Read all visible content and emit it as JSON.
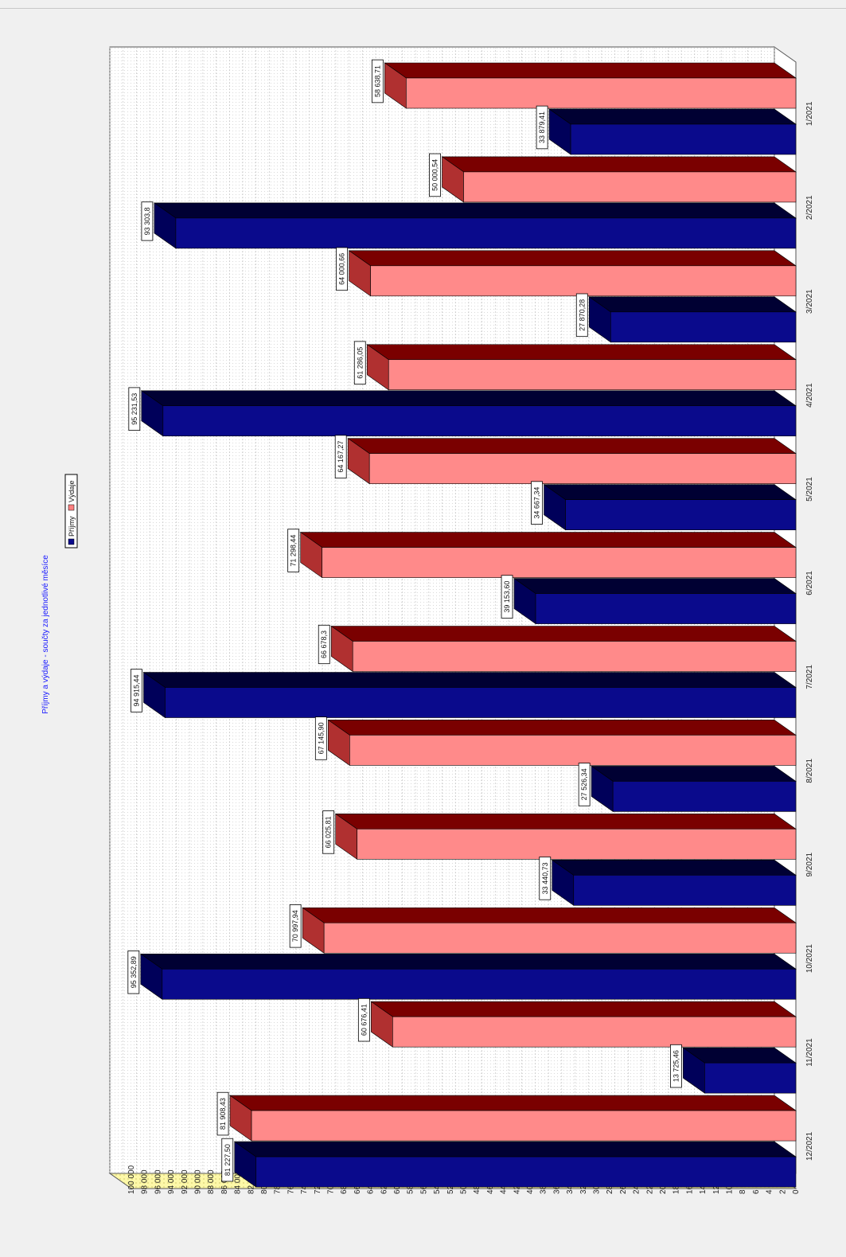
{
  "chart_data": {
    "type": "bar",
    "title": "Příjmy a výdaje - součty za jednotlivé měsíce",
    "categories": [
      "1/2021",
      "2/2021",
      "3/2021",
      "4/2021",
      "5/2021",
      "6/2021",
      "7/2021",
      "8/2021",
      "9/2021",
      "10/2021",
      "11/2021",
      "12/2021"
    ],
    "series": [
      {
        "name": "Příjmy",
        "values": [
          33879.41,
          93303.8,
          27870.28,
          95231.53,
          34667.34,
          39153.6,
          94915.44,
          27526.34,
          33440.73,
          95352.89,
          13725.46,
          81227.5
        ],
        "labels": [
          "33 879,41",
          "93 303,8",
          "27 870,28",
          "95 231,53",
          "34 667,34",
          "39 153,60",
          "94 915,44",
          "27 526,34",
          "33 440,73",
          "95 352,89",
          "13 725,46",
          "81 227,50"
        ],
        "color": "#0a0a8c"
      },
      {
        "name": "Výdaje",
        "values": [
          58638.71,
          50000.54,
          64000.66,
          61286.05,
          64167.27,
          71298.44,
          66678.3,
          67145.9,
          66025.81,
          70997.94,
          60676.41,
          81908.43
        ],
        "labels": [
          "58 638,71",
          "50 000,54",
          "64 000,66",
          "61 286,05",
          "64 167,27",
          "71 298,44",
          "66 678,3",
          "67 145,90",
          "66 025,81",
          "70 997,94",
          "60 676,41",
          "81 908,43"
        ],
        "color": "#ff8080"
      }
    ],
    "y_ticks": [
      "0",
      "2 000",
      "4 000",
      "6 000",
      "8 000",
      "10 000",
      "12 000",
      "14 000",
      "16 000",
      "18 000",
      "20 000",
      "22 000",
      "24 000",
      "26 000",
      "28 000",
      "30 000",
      "32 000",
      "34 000",
      "36 000",
      "38 000",
      "40 000",
      "42 000",
      "44 000",
      "46 000",
      "48 000",
      "50 000",
      "52 000",
      "54 000",
      "56 000",
      "58 000",
      "60 000",
      "62 000",
      "64 000",
      "66 000",
      "68 000",
      "70 000",
      "72 000",
      "74 000",
      "76 000",
      "78 000",
      "80 000",
      "82 000",
      "84 000",
      "86 000",
      "88 000",
      "90 000",
      "92 000",
      "94 000",
      "96 000",
      "98 000",
      "100 000"
    ],
    "ylim": [
      0,
      100000
    ],
    "orientation": "rotated-90",
    "grid": true,
    "legend_position": "top-center"
  }
}
